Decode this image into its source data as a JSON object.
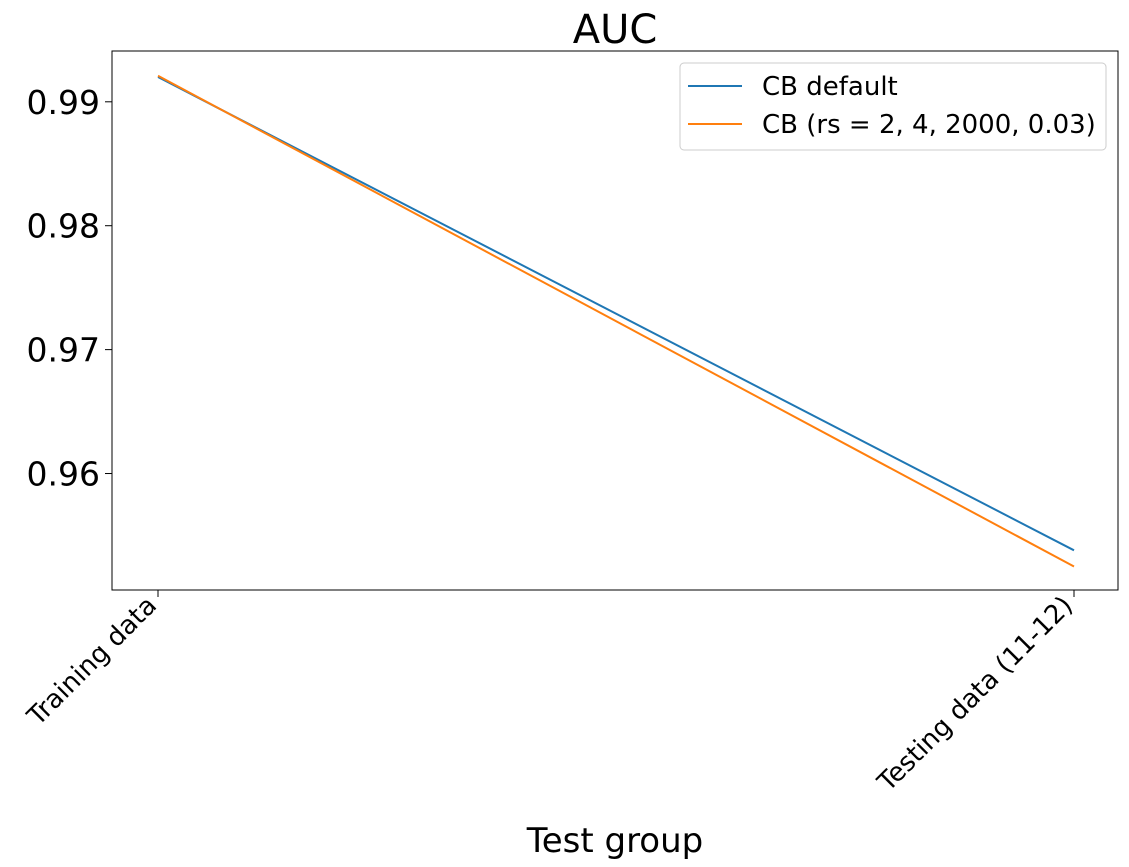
{
  "chart_data": {
    "type": "line",
    "title": "AUC",
    "xlabel": "Test group",
    "ylabel": "",
    "categories": [
      "Training data",
      "Testing data (11-12)"
    ],
    "series": [
      {
        "name": "CB default",
        "values": [
          0.992,
          0.9538
        ],
        "color": "#1f77b4"
      },
      {
        "name": "CB (rs = 2, 4, 2000, 0.03)",
        "values": [
          0.9921,
          0.9525
        ],
        "color": "#ff7f0e"
      }
    ],
    "yticks": [
      0.96,
      0.97,
      0.98,
      0.99
    ],
    "ylim": [
      0.9506,
      0.9941
    ],
    "legend_position": "top-right",
    "grid": false
  }
}
